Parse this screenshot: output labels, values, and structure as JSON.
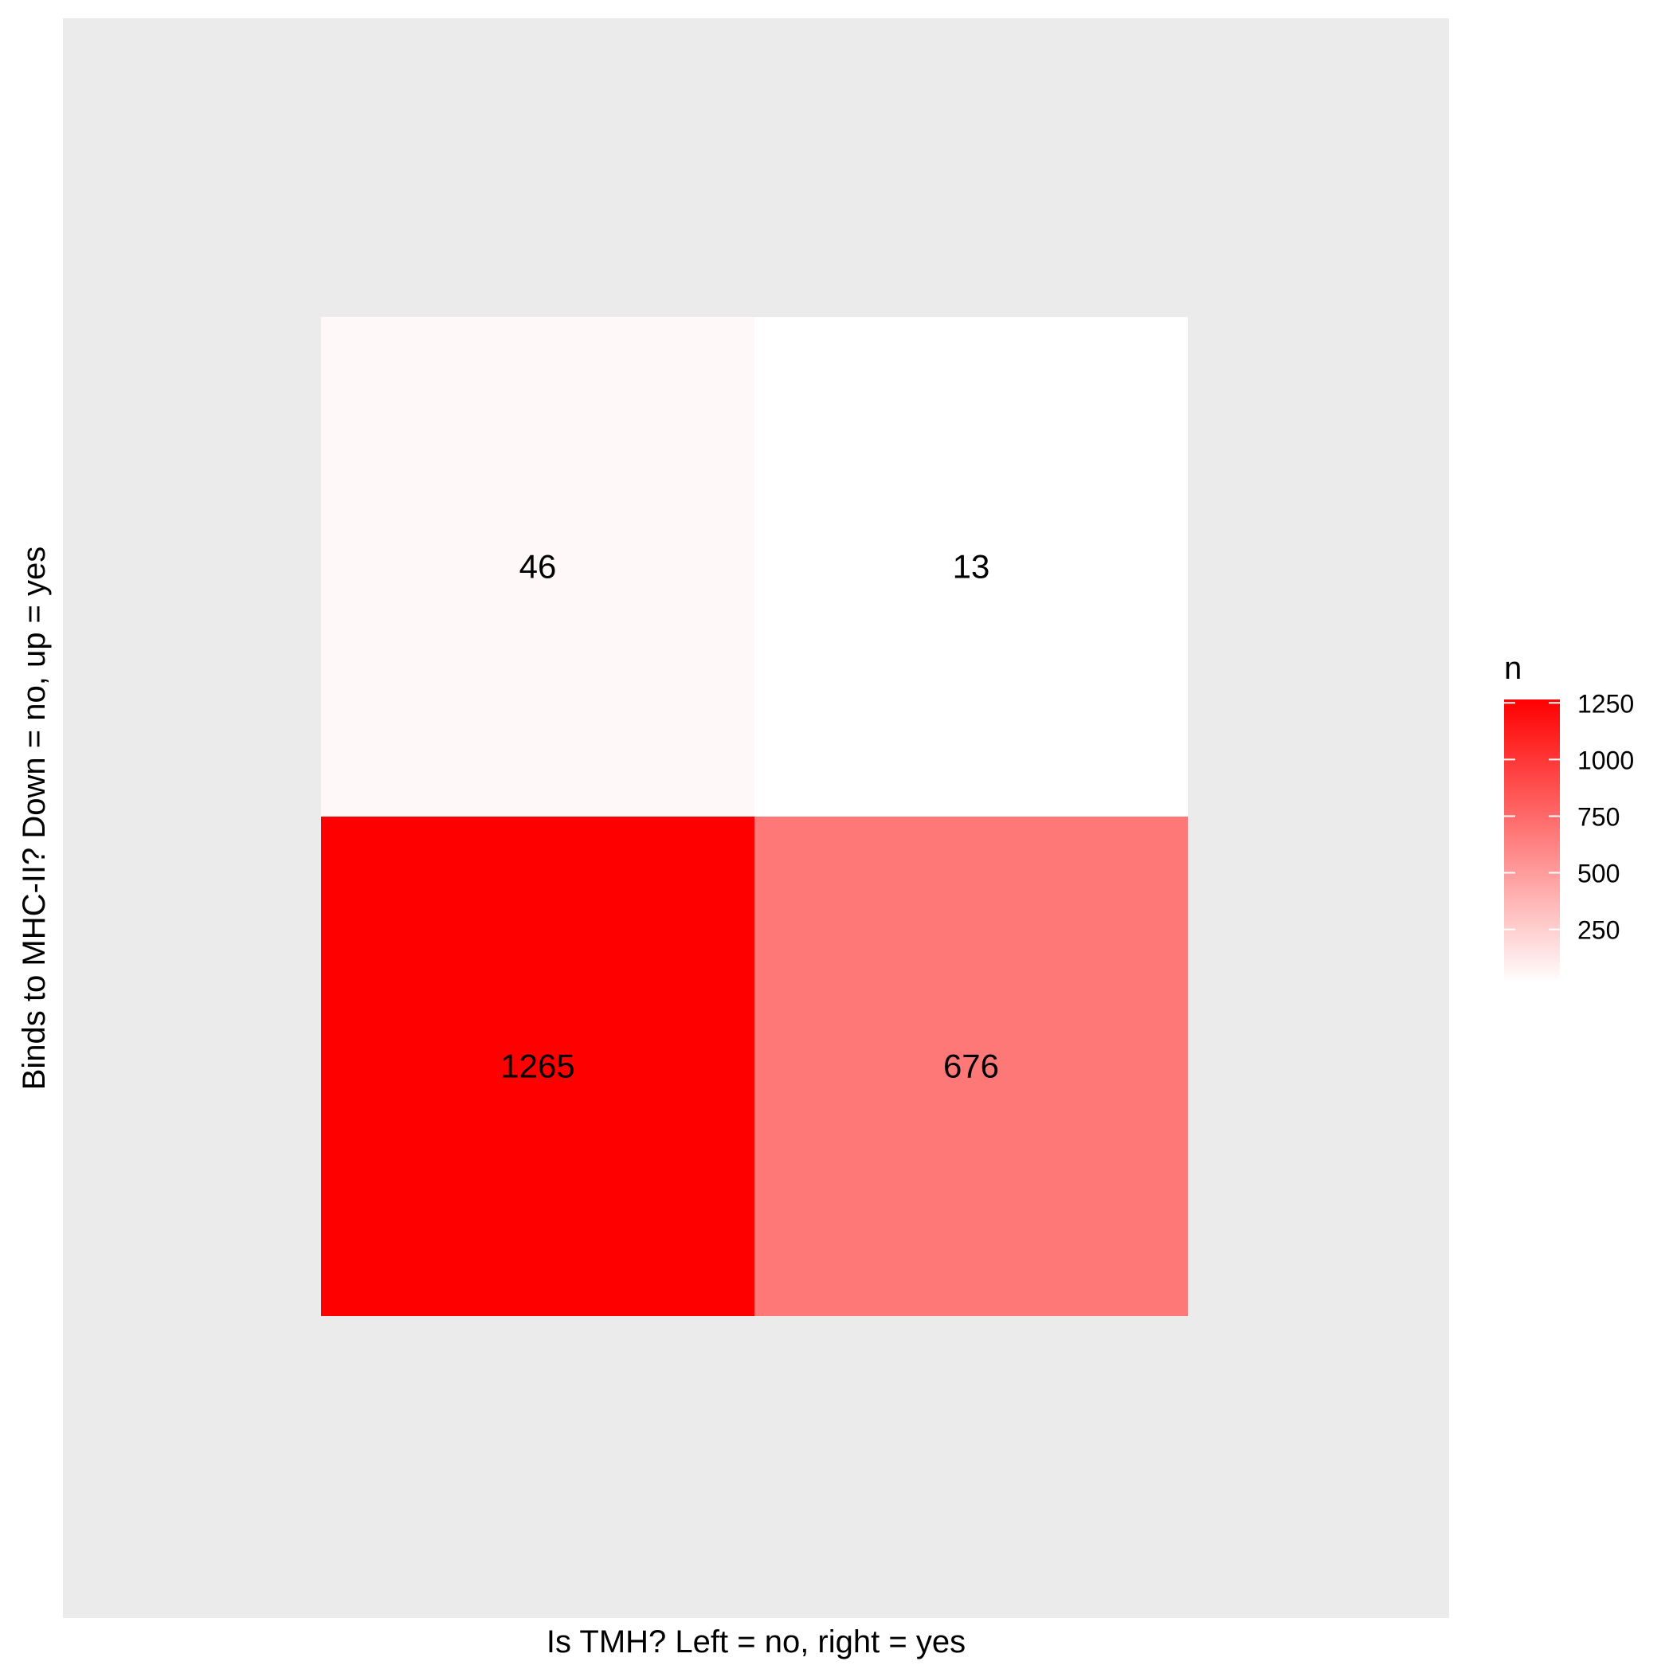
{
  "chart_data": {
    "type": "heatmap",
    "title": "",
    "xlabel": "Is TMH? Left = no, right = yes",
    "ylabel": "Binds to MHC-II? Down = no, up = yes",
    "x_categories": [
      "no",
      "yes"
    ],
    "y_categories": [
      "no",
      "yes"
    ],
    "cells": [
      {
        "x": "no",
        "y": "yes",
        "value": 46,
        "label": "46"
      },
      {
        "x": "yes",
        "y": "yes",
        "value": 13,
        "label": "13"
      },
      {
        "x": "no",
        "y": "no",
        "value": 1265,
        "label": "1265"
      },
      {
        "x": "yes",
        "y": "no",
        "value": 676,
        "label": "676"
      }
    ],
    "show_axis_ticks": false,
    "grid": false,
    "legend": {
      "title": "n",
      "placement": "right",
      "ticks": [
        250,
        500,
        750,
        1000,
        1250
      ],
      "tick_labels": [
        "250",
        "500",
        "750",
        "1000",
        "1250"
      ],
      "range": [
        13,
        1265
      ],
      "low_color": "#ffffff",
      "high_color": "#ff0000"
    },
    "panel_background": "#ebebeb"
  }
}
